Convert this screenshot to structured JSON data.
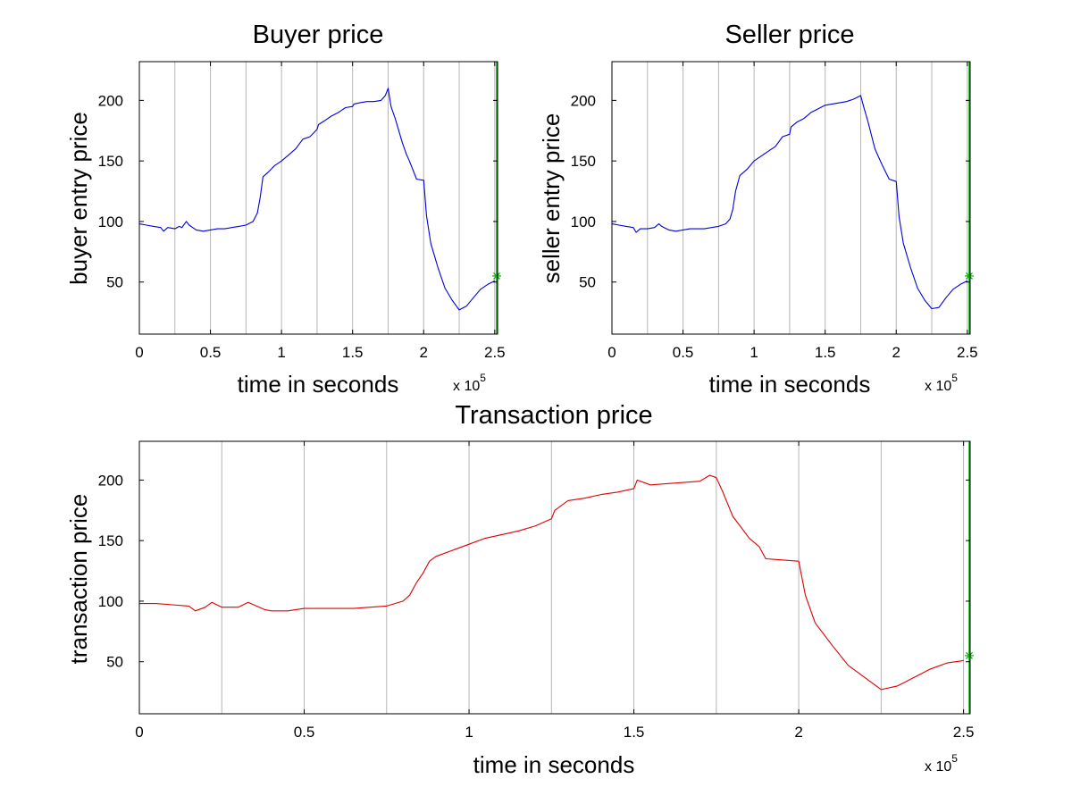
{
  "chart_data": [
    {
      "type": "line",
      "title": "Buyer price",
      "xlabel": "time in seconds",
      "ylabel": "buyer entry price",
      "x_exponent_label": {
        "base": "x 10",
        "power": "5"
      },
      "xlim": [
        0,
        2.52
      ],
      "ylim": [
        7,
        232
      ],
      "xticks": [
        0,
        0.5,
        1,
        1.5,
        2,
        2.5
      ],
      "xtick_labels": [
        "0",
        "0.5",
        "1",
        "1.5",
        "2",
        "2.5"
      ],
      "yticks": [
        50,
        100,
        150,
        200
      ],
      "ytick_labels": [
        "50",
        "100",
        "150",
        "200"
      ],
      "vertical_gridlines_x": [
        0.25,
        0.5,
        0.75,
        1.0,
        1.25,
        1.5,
        1.75,
        2.0,
        2.25,
        2.5
      ],
      "end_marker": {
        "x": 2.52,
        "y": 55,
        "symbol": "*"
      },
      "colors": {
        "series": "#0000dd",
        "grid": "#b5b5b5",
        "marker": "#00b000"
      },
      "series": [
        {
          "x": [
            0,
            0.05,
            0.1,
            0.15,
            0.17,
            0.2,
            0.25,
            0.28,
            0.3,
            0.33,
            0.35,
            0.4,
            0.45,
            0.5,
            0.55,
            0.6,
            0.65,
            0.7,
            0.75,
            0.8,
            0.83,
            0.85,
            0.87,
            0.9,
            0.95,
            1.0,
            1.05,
            1.1,
            1.15,
            1.2,
            1.25,
            1.26,
            1.3,
            1.35,
            1.4,
            1.45,
            1.5,
            1.51,
            1.55,
            1.6,
            1.65,
            1.7,
            1.73,
            1.75,
            1.77,
            1.8,
            1.85,
            1.88,
            1.9,
            1.95,
            2.0,
            2.02,
            2.05,
            2.1,
            2.15,
            2.2,
            2.25,
            2.3,
            2.35,
            2.4,
            2.45,
            2.5
          ],
          "y": [
            98,
            97,
            96,
            95,
            92,
            95,
            94,
            96,
            95,
            100,
            97,
            93,
            92,
            93,
            94,
            94,
            95,
            96,
            97,
            100,
            107,
            120,
            137,
            140,
            146,
            150,
            155,
            160,
            168,
            170,
            176,
            180,
            183,
            187,
            190,
            194,
            195,
            197,
            198,
            199,
            199,
            200,
            204,
            210,
            195,
            185,
            165,
            155,
            150,
            135,
            134,
            105,
            82,
            62,
            45,
            35,
            27,
            30,
            37,
            44,
            48,
            51
          ]
        }
      ]
    },
    {
      "type": "line",
      "title": "Seller price",
      "xlabel": "time in seconds",
      "ylabel": "seller entry price",
      "x_exponent_label": {
        "base": "x 10",
        "power": "5"
      },
      "xlim": [
        0,
        2.52
      ],
      "ylim": [
        7,
        232
      ],
      "xticks": [
        0,
        0.5,
        1,
        1.5,
        2,
        2.5
      ],
      "xtick_labels": [
        "0",
        "0.5",
        "1",
        "1.5",
        "2",
        "2.5"
      ],
      "yticks": [
        50,
        100,
        150,
        200
      ],
      "ytick_labels": [
        "50",
        "100",
        "150",
        "200"
      ],
      "vertical_gridlines_x": [
        0.25,
        0.5,
        0.75,
        1.0,
        1.25,
        1.5,
        1.75,
        2.0,
        2.25,
        2.5
      ],
      "end_marker": {
        "x": 2.52,
        "y": 55,
        "symbol": "*"
      },
      "colors": {
        "series": "#0000dd",
        "grid": "#b5b5b5",
        "marker": "#00b000"
      },
      "series": [
        {
          "x": [
            0,
            0.05,
            0.1,
            0.15,
            0.17,
            0.2,
            0.25,
            0.3,
            0.33,
            0.35,
            0.4,
            0.45,
            0.5,
            0.55,
            0.6,
            0.65,
            0.7,
            0.75,
            0.8,
            0.83,
            0.85,
            0.87,
            0.9,
            0.95,
            1.0,
            1.05,
            1.1,
            1.15,
            1.2,
            1.25,
            1.26,
            1.3,
            1.35,
            1.4,
            1.45,
            1.5,
            1.55,
            1.6,
            1.65,
            1.7,
            1.75,
            1.77,
            1.8,
            1.85,
            1.88,
            1.9,
            1.95,
            2.0,
            2.02,
            2.05,
            2.1,
            2.15,
            2.2,
            2.25,
            2.3,
            2.35,
            2.4,
            2.45,
            2.5
          ],
          "y": [
            98,
            97,
            96,
            95,
            91,
            94,
            94,
            95,
            98,
            96,
            93,
            92,
            93,
            94,
            94,
            94,
            95,
            96,
            98,
            102,
            110,
            125,
            138,
            143,
            150,
            154,
            158,
            162,
            170,
            172,
            178,
            182,
            185,
            190,
            193,
            196,
            197,
            198,
            199,
            201,
            204,
            195,
            183,
            160,
            152,
            147,
            135,
            133,
            104,
            82,
            62,
            45,
            35,
            28,
            29,
            37,
            44,
            48,
            51
          ]
        }
      ]
    },
    {
      "type": "line",
      "title": "Transaction price",
      "xlabel": "time in seconds",
      "ylabel": "transaction price",
      "x_exponent_label": {
        "base": "x 10",
        "power": "5"
      },
      "xlim": [
        0,
        2.52
      ],
      "ylim": [
        7,
        232
      ],
      "xticks": [
        0,
        0.5,
        1,
        1.5,
        2,
        2.5
      ],
      "xtick_labels": [
        "0",
        "0.5",
        "1",
        "1.5",
        "2",
        "2.5"
      ],
      "yticks": [
        50,
        100,
        150,
        200
      ],
      "ytick_labels": [
        "50",
        "100",
        "150",
        "200"
      ],
      "vertical_gridlines_x": [
        0.25,
        0.5,
        0.75,
        1.0,
        1.25,
        1.5,
        1.75,
        2.0,
        2.25,
        2.5
      ],
      "end_marker": {
        "x": 2.52,
        "y": 55,
        "symbol": "*"
      },
      "colors": {
        "series": "#dd0000",
        "grid": "#b5b5b5",
        "marker": "#00b000"
      },
      "series": [
        {
          "x": [
            0,
            0.05,
            0.1,
            0.15,
            0.17,
            0.2,
            0.22,
            0.25,
            0.3,
            0.33,
            0.38,
            0.4,
            0.45,
            0.5,
            0.55,
            0.6,
            0.65,
            0.7,
            0.75,
            0.8,
            0.82,
            0.84,
            0.86,
            0.88,
            0.9,
            0.95,
            1.0,
            1.05,
            1.1,
            1.15,
            1.2,
            1.25,
            1.26,
            1.3,
            1.35,
            1.4,
            1.45,
            1.5,
            1.51,
            1.55,
            1.6,
            1.65,
            1.7,
            1.73,
            1.75,
            1.77,
            1.8,
            1.85,
            1.88,
            1.9,
            1.95,
            2.0,
            2.02,
            2.05,
            2.1,
            2.15,
            2.2,
            2.25,
            2.3,
            2.35,
            2.4,
            2.45,
            2.5
          ],
          "y": [
            98,
            98,
            97,
            96,
            92,
            95,
            99,
            95,
            95,
            99,
            93,
            92,
            92,
            94,
            94,
            94,
            94,
            95,
            96,
            100,
            105,
            115,
            123,
            133,
            137,
            142,
            147,
            152,
            155,
            158,
            162,
            168,
            175,
            183,
            185,
            188,
            190,
            193,
            200,
            196,
            197,
            198,
            199,
            204,
            202,
            190,
            170,
            152,
            145,
            135,
            134,
            133,
            105,
            82,
            64,
            47,
            37,
            27,
            30,
            37,
            44,
            49,
            51
          ]
        }
      ]
    }
  ]
}
